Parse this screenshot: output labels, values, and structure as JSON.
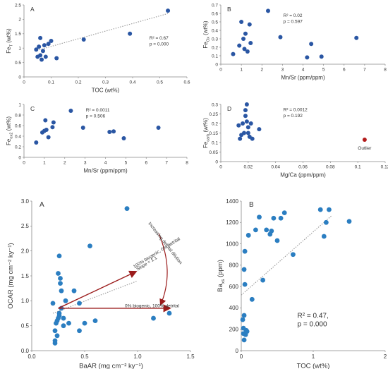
{
  "chart_data": [
    {
      "type": "scatter",
      "panel_label": "A",
      "xlabel": "TOC (wt%)",
      "ylabel_main": "Fe",
      "ylabel_sub": "T",
      "ylabel_unit": "(wt%)",
      "xlim": [
        0,
        0.6
      ],
      "ylim": [
        0,
        2.5
      ],
      "xticks": [
        "0",
        "0.1",
        "0.2",
        "0.3",
        "0.4",
        "0.5",
        "0.6"
      ],
      "yticks": [
        "0",
        "0.5",
        "1",
        "1.5",
        "2",
        "2.5"
      ],
      "stats": [
        "R² = 0.67",
        "p = 0.000"
      ],
      "trendline": {
        "x": [
          0.04,
          0.53
        ],
        "y": [
          0.9,
          2.2
        ]
      },
      "series": [
        {
          "color": "#2a56a3",
          "x": [
            0.045,
            0.05,
            0.055,
            0.06,
            0.06,
            0.065,
            0.07,
            0.075,
            0.08,
            0.09,
            0.1,
            0.12,
            0.22,
            0.39,
            0.53
          ],
          "y": [
            0.95,
            0.7,
            1.05,
            0.75,
            1.35,
            0.6,
            0.9,
            1.1,
            0.7,
            1.15,
            1.25,
            0.65,
            1.3,
            1.5,
            2.3
          ]
        }
      ]
    },
    {
      "type": "scatter",
      "panel_label": "B",
      "xlabel": "Mn/Sr (ppm/ppm)",
      "ylabel_main": "Fe",
      "ylabel_sub": "Ox",
      "ylabel_unit": "(wt%)",
      "xlim": [
        0,
        8
      ],
      "ylim": [
        0,
        0.7
      ],
      "xticks": [
        "0",
        "1",
        "2",
        "3",
        "4",
        "5",
        "6",
        "7",
        "8"
      ],
      "yticks": [
        "0",
        "0.1",
        "0.2",
        "0.3",
        "0.4",
        "0.5",
        "0.6",
        "0.7"
      ],
      "stats": [
        "R² = 0.02",
        "p = 0.597"
      ],
      "series": [
        {
          "color": "#2a56a3",
          "x": [
            0.6,
            0.9,
            1.0,
            1.1,
            1.15,
            1.2,
            1.3,
            1.4,
            1.45,
            2.3,
            2.9,
            4.2,
            4.4,
            4.9,
            6.6
          ],
          "y": [
            0.12,
            0.22,
            0.5,
            0.3,
            0.18,
            0.36,
            0.15,
            0.47,
            0.25,
            0.63,
            0.32,
            0.08,
            0.24,
            0.09,
            0.31
          ]
        }
      ]
    },
    {
      "type": "scatter",
      "panel_label": "C",
      "xlabel": "Mn/Sr (ppm/ppm)",
      "ylabel_main": "Fe",
      "ylabel_sub": "ox2",
      "ylabel_unit": "(wt%)",
      "xlim": [
        0,
        8
      ],
      "ylim": [
        0,
        1
      ],
      "xticks": [
        "0",
        "1",
        "2",
        "3",
        "4",
        "5",
        "6",
        "7",
        "8"
      ],
      "yticks": [
        "0",
        "0.2",
        "0.4",
        "0.6",
        "0.8",
        "1"
      ],
      "stats": [
        "R² = 0.0011",
        "p = 0.506"
      ],
      "series": [
        {
          "color": "#2a56a3",
          "x": [
            0.6,
            0.9,
            1.0,
            1.05,
            1.1,
            1.2,
            1.4,
            1.45,
            2.3,
            2.9,
            4.2,
            4.4,
            4.9,
            6.6
          ],
          "y": [
            0.28,
            0.47,
            0.5,
            0.7,
            0.52,
            0.38,
            0.57,
            0.66,
            0.88,
            0.56,
            0.48,
            0.49,
            0.36,
            0.56
          ]
        }
      ]
    },
    {
      "type": "scatter",
      "panel_label": "D",
      "xlabel": "Mg/Ca (ppm/ppm)",
      "ylabel_main": "Fe",
      "ylabel_sub": "carb",
      "ylabel_unit": "(wt%)",
      "xlim": [
        0,
        0.12
      ],
      "ylim": [
        0,
        0.3
      ],
      "xticks": [
        "0",
        "0.02",
        "0.04",
        "0.06",
        "0.08",
        "0.1",
        "0.12"
      ],
      "yticks": [
        "0",
        "0.05",
        "0.1",
        "0.15",
        "0.2",
        "0.25",
        "0.3"
      ],
      "stats": [
        "R² = 0.0012",
        "p = 0.192"
      ],
      "annotation": "Outlier",
      "series": [
        {
          "color": "#2a56a3",
          "x": [
            0.013,
            0.014,
            0.015,
            0.016,
            0.017,
            0.018,
            0.018,
            0.019,
            0.019,
            0.02,
            0.02,
            0.021,
            0.022,
            0.023,
            0.028
          ],
          "y": [
            0.19,
            0.12,
            0.14,
            0.2,
            0.15,
            0.27,
            0.24,
            0.21,
            0.3,
            0.18,
            0.15,
            0.13,
            0.2,
            0.12,
            0.17
          ]
        },
        {
          "color": "#b31b1b",
          "x": [
            0.105
          ],
          "y": [
            0.115
          ]
        }
      ]
    },
    {
      "type": "scatter",
      "panel_label": "A",
      "xlabel": "BaAR (mg cm⁻² ky⁻¹)",
      "ylabel": "OCAR (mg cm⁻² ky⁻¹)",
      "xlim": [
        0,
        1.5
      ],
      "ylim": [
        0,
        3.0
      ],
      "xticks": [
        "0.0",
        "0.5",
        "1.0",
        "1.5"
      ],
      "yticks": [
        "0.0",
        "0.5",
        "1.0",
        "1.5",
        "2.0",
        "2.5",
        "3.0"
      ],
      "annotations": [
        "100% biogenic, 0% detrital",
        "Slope = 1.1",
        "Increasing detrital dilution",
        "0% biogenic, 100% detrital"
      ],
      "trendline": {
        "x": [
          0.2,
          1.0
        ],
        "y": [
          0.75,
          1.4
        ]
      },
      "series": [
        {
          "color": "#2b7ec1",
          "x": [
            0.2,
            0.22,
            0.22,
            0.23,
            0.24,
            0.25,
            0.25,
            0.26,
            0.26,
            0.27,
            0.27,
            0.28,
            0.28,
            0.3,
            0.3,
            0.32,
            0.35,
            0.4,
            0.45,
            0.45,
            0.5,
            0.55,
            0.6,
            0.9,
            1.15,
            1.3,
            0.22,
            0.24,
            0.26
          ],
          "y": [
            0.95,
            0.2,
            0.4,
            0.55,
            0.3,
            0.65,
            1.55,
            0.75,
            1.9,
            1.35,
            1.45,
            0.85,
            1.2,
            0.5,
            0.65,
            1.0,
            0.55,
            1.2,
            0.95,
            0.4,
            0.55,
            2.1,
            0.6,
            2.85,
            0.65,
            0.75,
            0.15,
            0.6,
            0.7
          ]
        }
      ]
    },
    {
      "type": "scatter",
      "panel_label": "B",
      "xlabel": "TOC (wt%)",
      "ylabel_main": "Ba",
      "ylabel_sub": "xs",
      "ylabel_unit": "(ppm)",
      "xlim": [
        0,
        2
      ],
      "ylim": [
        0,
        1400
      ],
      "xticks": [
        "0",
        "1",
        "2"
      ],
      "yticks": [
        "0",
        "200",
        "400",
        "600",
        "800",
        "1000",
        "1200",
        "1400"
      ],
      "stats": [
        "R² = 0.47,",
        "p = 0.000"
      ],
      "trendline": {
        "x": [
          0.0,
          1.25
        ],
        "y": [
          520,
          1260
        ]
      },
      "series": [
        {
          "color": "#2b7ec1",
          "x": [
            0.02,
            0.03,
            0.03,
            0.04,
            0.04,
            0.05,
            0.05,
            0.06,
            0.07,
            0.08,
            0.1,
            0.15,
            0.2,
            0.25,
            0.3,
            0.35,
            0.4,
            0.45,
            0.5,
            0.55,
            0.6,
            0.72,
            1.1,
            1.15,
            1.18,
            1.22,
            1.5,
            0.42,
            0.04
          ],
          "y": [
            290,
            160,
            210,
            330,
            760,
            930,
            620,
            150,
            190,
            180,
            1080,
            480,
            1130,
            1250,
            660,
            1130,
            1090,
            1240,
            1030,
            1240,
            1290,
            900,
            1320,
            1070,
            1200,
            1320,
            1210,
            1120,
            100
          ]
        }
      ]
    }
  ]
}
